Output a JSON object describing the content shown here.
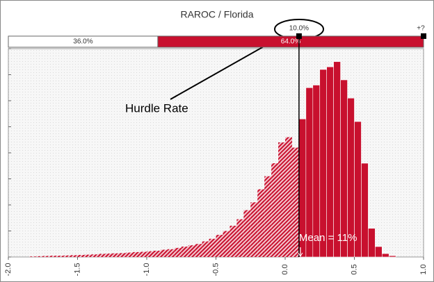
{
  "chart_data": {
    "type": "histogram",
    "title": "RAROC / Florida",
    "bins": [
      -1.85,
      -1.8,
      -1.75,
      -1.7,
      -1.65,
      -1.6,
      -1.55,
      -1.5,
      -1.45,
      -1.4,
      -1.35,
      -1.3,
      -1.25,
      -1.2,
      -1.15,
      -1.1,
      -1.05,
      -1.0,
      -0.95,
      -0.9,
      -0.85,
      -0.8,
      -0.75,
      -0.7,
      -0.65,
      -0.6,
      -0.55,
      -0.5,
      -0.45,
      -0.4,
      -0.35,
      -0.3,
      -0.25,
      -0.2,
      -0.15,
      -0.1,
      -0.05,
      0.0,
      0.05,
      0.1,
      0.15,
      0.2,
      0.25,
      0.3,
      0.35,
      0.4,
      0.45,
      0.5,
      0.55,
      0.6,
      0.65,
      0.7,
      0.75,
      0.8
    ],
    "values": [
      0.02,
      0.03,
      0.04,
      0.05,
      0.05,
      0.06,
      0.07,
      0.08,
      0.09,
      0.1,
      0.12,
      0.13,
      0.14,
      0.15,
      0.17,
      0.19,
      0.2,
      0.22,
      0.24,
      0.28,
      0.3,
      0.35,
      0.4,
      0.45,
      0.5,
      0.6,
      0.7,
      0.85,
      1.0,
      1.2,
      1.45,
      1.8,
      2.1,
      2.6,
      3.1,
      3.6,
      4.4,
      4.6,
      4.2,
      5.3,
      6.5,
      6.6,
      7.2,
      7.3,
      7.5,
      6.8,
      6.1,
      5.2,
      3.6,
      1.1,
      0.4,
      0.13,
      0.05
    ],
    "color": "#c8102e",
    "xlim": [
      -2.0,
      1.0
    ],
    "xticks": [
      {
        "value": -2.0,
        "label": "-2.0"
      },
      -1.5,
      {
        "value": -1.0,
        "label": "-1.0"
      },
      -0.5,
      {
        "value": 0.0,
        "label": "0.0"
      },
      0.5,
      {
        "value": 1.0,
        "label": "1.0"
      }
    ],
    "ylim": [
      0,
      8
    ],
    "yticks": [
      0,
      1,
      2,
      3,
      4,
      5,
      6,
      7,
      8
    ],
    "hurdle": {
      "value": 0.1,
      "label": "10.0%"
    },
    "right_label": "+?",
    "split": {
      "values": [
        36.0,
        64.0
      ],
      "value_labels": [
        "36.0%",
        "64.0%"
      ]
    },
    "mean": {
      "value": 0.11,
      "label": "Mean = 11%"
    },
    "annotation": "Hurdle Rate"
  }
}
